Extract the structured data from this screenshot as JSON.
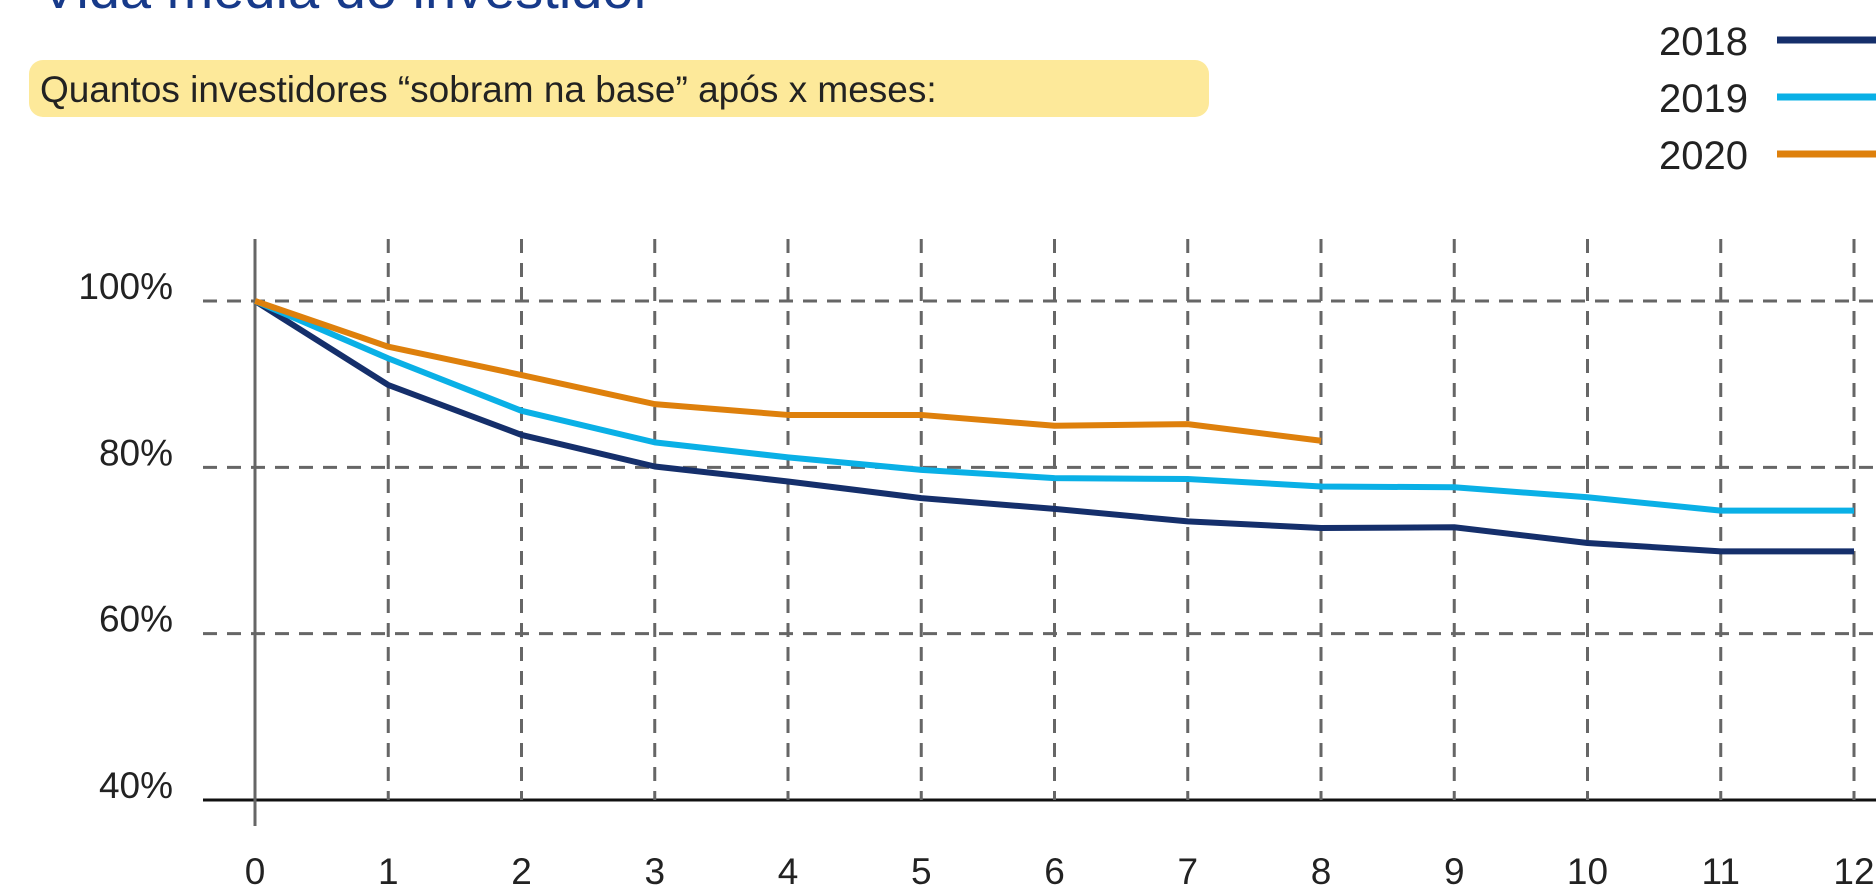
{
  "chart_data": {
    "type": "line",
    "title": "Vida média do investidor",
    "subtitle": "Quantos investidores “sobram na base” após x meses:",
    "x": [
      0,
      1,
      2,
      3,
      4,
      5,
      6,
      7,
      8,
      9,
      10,
      11,
      12
    ],
    "xlim": [
      0,
      12
    ],
    "xticks": [
      0,
      1,
      2,
      3,
      4,
      5,
      6,
      7,
      8,
      9,
      10,
      11,
      12
    ],
    "ylim": [
      40,
      100
    ],
    "yticks": [
      {
        "value": 40,
        "label": "40%"
      },
      {
        "value": 60,
        "label": "60%"
      },
      {
        "value": 80,
        "label": "80%"
      },
      {
        "value": 100,
        "label": "100%"
      }
    ],
    "grid": true,
    "legend": "top-right",
    "series": [
      {
        "name": "2018",
        "color": "#152f6b",
        "values": [
          100,
          89.9,
          83.9,
          80.1,
          78.3,
          76.3,
          75.0,
          73.5,
          72.7,
          72.8,
          70.9,
          69.9,
          69.9
        ]
      },
      {
        "name": "2019",
        "color": "#0ab0e6",
        "values": [
          100,
          93.1,
          86.8,
          83.0,
          81.2,
          79.7,
          78.7,
          78.6,
          77.7,
          77.6,
          76.4,
          74.8,
          74.8
        ]
      },
      {
        "name": "2020",
        "color": "#de800c",
        "values": [
          100,
          94.5,
          91.1,
          87.6,
          86.3,
          86.3,
          85.0,
          85.2,
          83.2,
          null,
          null,
          null,
          null
        ]
      }
    ]
  }
}
